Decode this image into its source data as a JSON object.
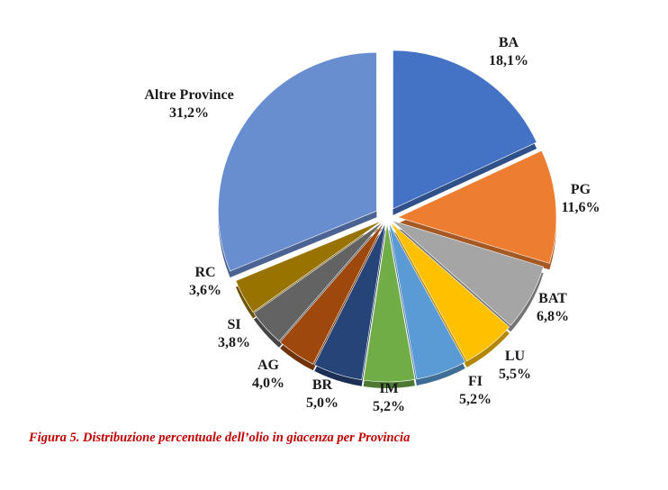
{
  "chart_data": {
    "type": "pie",
    "categories": [
      "BA",
      "PG",
      "BAT",
      "LU",
      "FI",
      "IM",
      "BR",
      "AG",
      "SI",
      "RC",
      "Altre Province"
    ],
    "values": [
      18.1,
      11.6,
      6.8,
      5.5,
      5.2,
      5.2,
      5.0,
      4.0,
      3.8,
      3.6,
      31.2
    ],
    "value_labels": [
      "18,1%",
      "11,6%",
      "6,8%",
      "5,5%",
      "5,2%",
      "5,2%",
      "5,0%",
      "4,0%",
      "3,8%",
      "3,6%",
      "31,2%"
    ],
    "colors": [
      "#4472c4",
      "#ed7d31",
      "#a5a5a5",
      "#ffc000",
      "#5b9bd5",
      "#70ad47",
      "#264478",
      "#9e480e",
      "#636363",
      "#997300",
      "#698ed0"
    ],
    "exploded": true
  },
  "caption": "Figura 5. Distribuzione percentuale dell’olio in giacenza per Provincia"
}
